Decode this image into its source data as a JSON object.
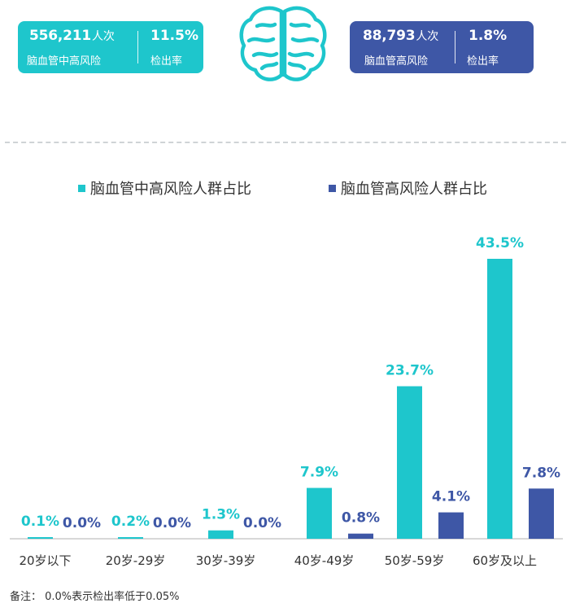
{
  "header": {
    "left_badge": {
      "count": "556,211",
      "count_unit": "人次",
      "count_label": "脑血管中高风险",
      "rate": "11.5%",
      "rate_label": "检出率",
      "color": "#1ec6cc"
    },
    "right_badge": {
      "count": "88,793",
      "count_unit": "人次",
      "count_label": "脑血管高风险",
      "rate": "1.8%",
      "rate_label": "检出率",
      "color": "#3e57a6"
    },
    "icon": "brain-icon"
  },
  "chart_data": {
    "type": "bar",
    "categories": [
      "20岁以下",
      "20岁-29岁",
      "30岁-39岁",
      "40岁-49岁",
      "50岁-59岁",
      "60岁及以上"
    ],
    "series": [
      {
        "name": "脑血管中高风险人群占比",
        "color": "#1ec6cc",
        "values": [
          0.1,
          0.2,
          1.3,
          7.9,
          23.7,
          43.5
        ],
        "labels": [
          "0.1%",
          "0.2%",
          "1.3%",
          "7.9%",
          "23.7%",
          "43.5%"
        ]
      },
      {
        "name": "脑血管高风险人群占比",
        "color": "#3e57a6",
        "values": [
          0.0,
          0.0,
          0.0,
          0.8,
          4.1,
          7.8
        ],
        "labels": [
          "0.0%",
          "0.0%",
          "0.0%",
          "0.8%",
          "4.1%",
          "7.8%"
        ]
      }
    ],
    "ylim": [
      0,
      43.5
    ],
    "grid": false,
    "legend": "top"
  },
  "note": "备注： 0.0%表示检出率低于0.05%"
}
